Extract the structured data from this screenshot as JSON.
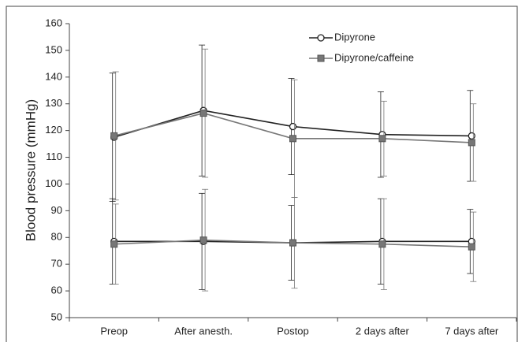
{
  "chart_data": {
    "type": "line",
    "y_label": "Blood pressure (mmHg)",
    "categories": [
      "Preop",
      "After anesth.",
      "Postop",
      "2 days after",
      "7 days after"
    ],
    "ylim": [
      50,
      160
    ],
    "yticks": [
      50,
      60,
      70,
      80,
      90,
      100,
      110,
      120,
      130,
      140,
      150,
      160
    ],
    "series": [
      {
        "name": "Dipyrone",
        "color": "#222222",
        "marker": "circle",
        "systolic": {
          "values": [
            117.5,
            127.5,
            121.5,
            118.5,
            118
          ],
          "errors": [
            24,
            24.5,
            18,
            16,
            17
          ]
        },
        "diastolic": {
          "values": [
            78.5,
            78.5,
            78,
            78.5,
            78.5
          ],
          "errors": [
            16,
            18,
            14,
            16,
            12
          ]
        }
      },
      {
        "name": "Dipyrone/caffeine",
        "color": "#777777",
        "marker": "square",
        "systolic": {
          "values": [
            118,
            126.5,
            117,
            117,
            115.5
          ],
          "errors": [
            24,
            24,
            22,
            14,
            14.5
          ]
        },
        "diastolic": {
          "values": [
            77.5,
            79,
            78,
            77.5,
            76.5
          ],
          "errors": [
            15,
            19,
            17,
            17,
            13
          ]
        }
      }
    ],
    "legend": "top-right"
  }
}
